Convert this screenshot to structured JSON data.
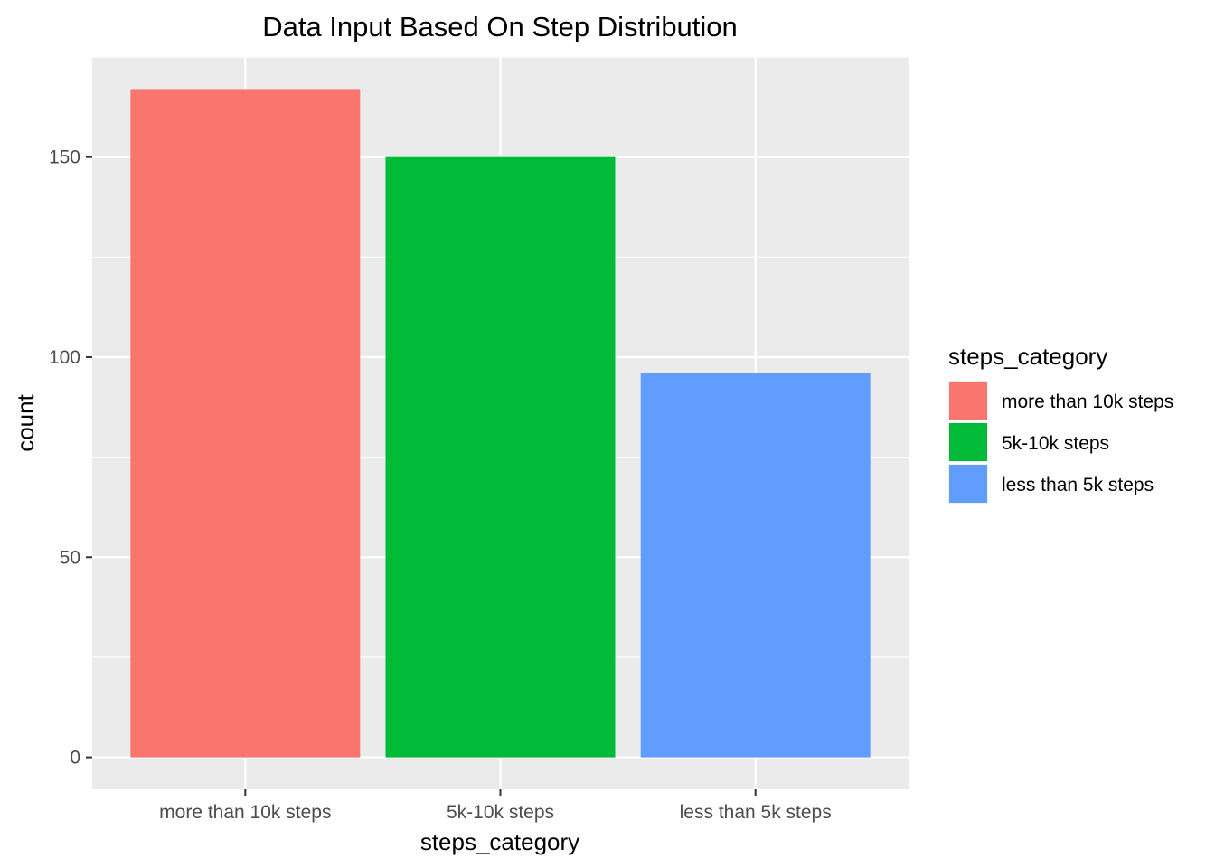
{
  "chart_data": {
    "type": "bar",
    "title": "Data Input Based On Step Distribution",
    "xlabel": "steps_category",
    "ylabel": "count",
    "categories": [
      "more than 10k steps",
      "5k-10k steps",
      "less than 5k steps"
    ],
    "values": [
      167,
      150,
      96
    ],
    "colors": [
      "#F8766D",
      "#00BA38",
      "#619CFF"
    ],
    "ylim": [
      -8,
      175
    ],
    "yticks": [
      0,
      50,
      100,
      150
    ],
    "ytick_labels": [
      "0",
      "50",
      "100",
      "150"
    ],
    "grid": true,
    "panel_background": "#EBEBEB",
    "grid_color": "#FFFFFF",
    "legend": {
      "title": "steps_category",
      "placement": "right",
      "entries": [
        "more than 10k steps",
        "5k-10k steps",
        "less than 5k steps"
      ]
    }
  }
}
